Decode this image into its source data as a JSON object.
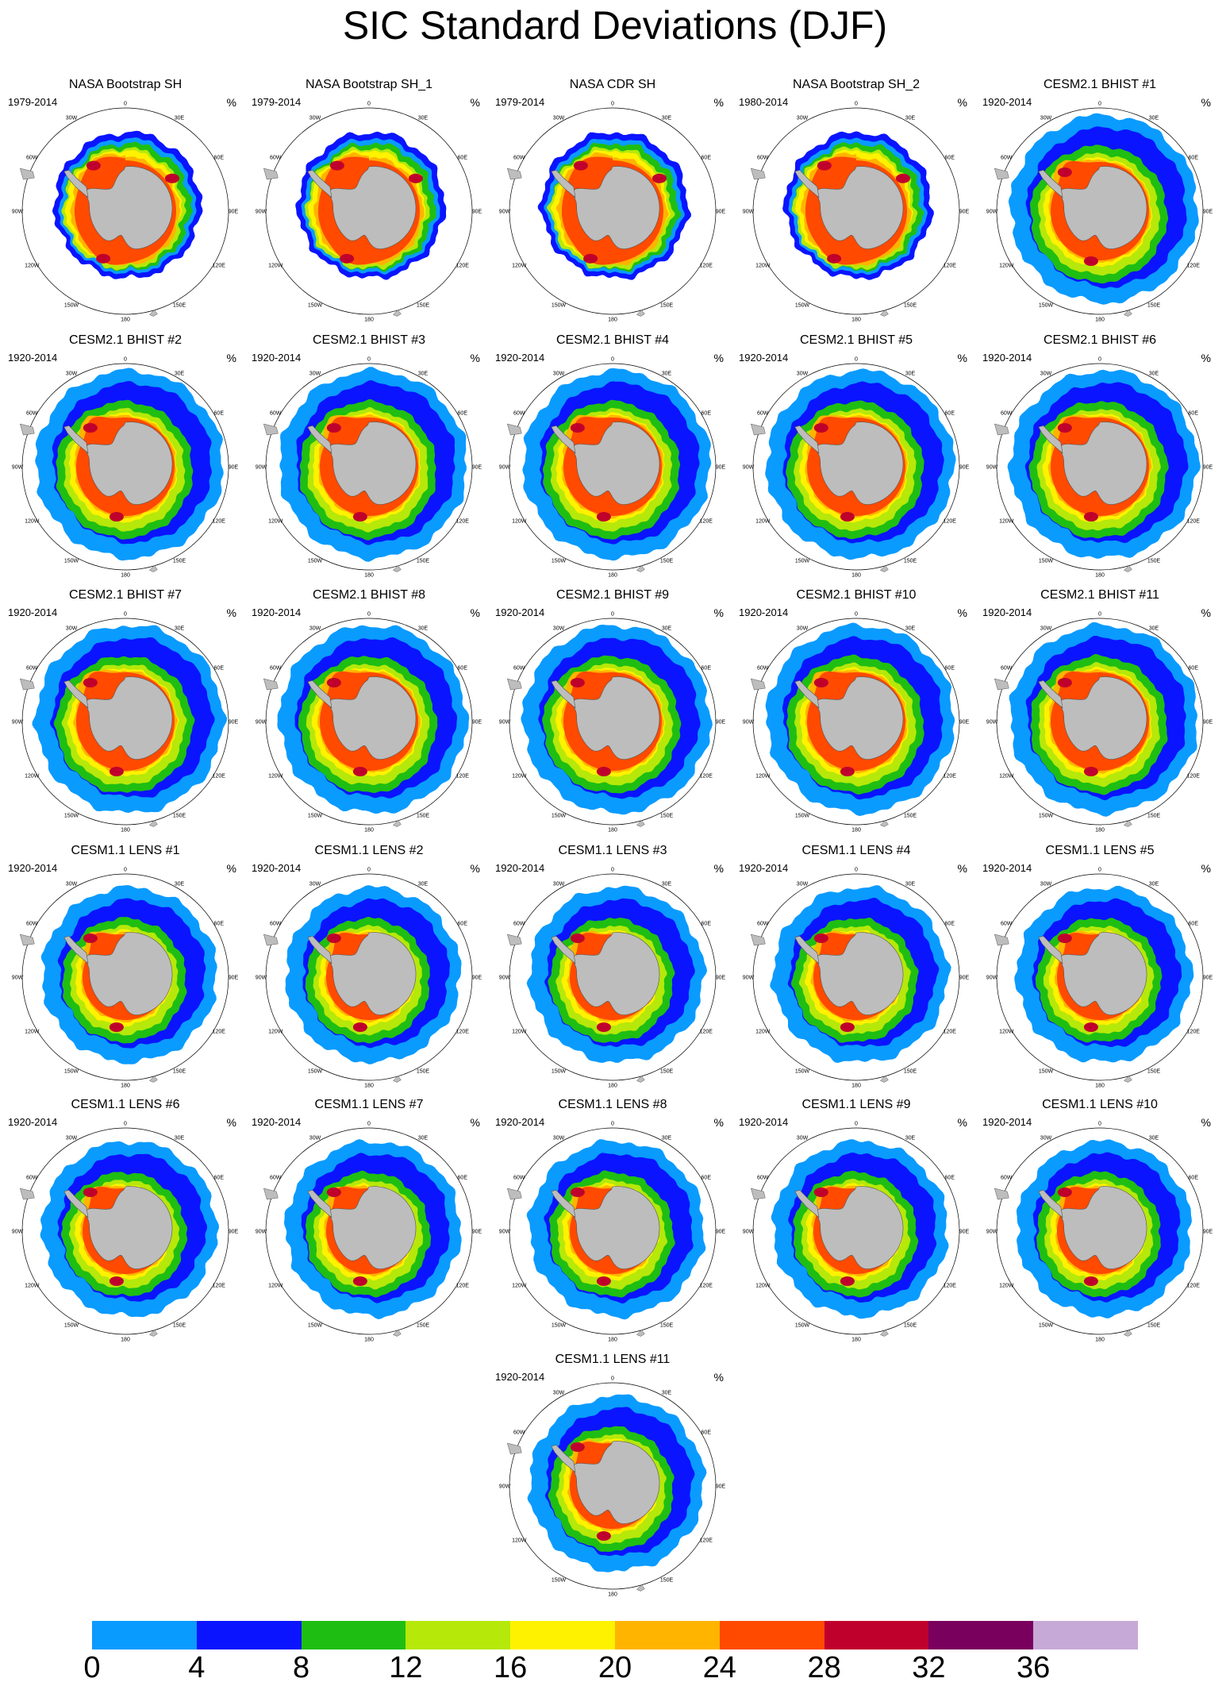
{
  "title": "SIC Standard Deviations (DJF)",
  "unit": "%",
  "panels": [
    {
      "title": "NASA Bootstrap SH",
      "period": "1979-2014",
      "kind": "obs"
    },
    {
      "title": "NASA Bootstrap SH_1",
      "period": "1979-2014",
      "kind": "obs"
    },
    {
      "title": "NASA CDR SH",
      "period": "1979-2014",
      "kind": "obs"
    },
    {
      "title": "NASA Bootstrap SH_2",
      "period": "1980-2014",
      "kind": "obs"
    },
    {
      "title": "CESM2.1 BHIST #1",
      "period": "1920-2014",
      "kind": "cesm2"
    },
    {
      "title": "CESM2.1 BHIST #2",
      "period": "1920-2014",
      "kind": "cesm2"
    },
    {
      "title": "CESM2.1 BHIST #3",
      "period": "1920-2014",
      "kind": "cesm2"
    },
    {
      "title": "CESM2.1 BHIST #4",
      "period": "1920-2014",
      "kind": "cesm2"
    },
    {
      "title": "CESM2.1 BHIST #5",
      "period": "1920-2014",
      "kind": "cesm2"
    },
    {
      "title": "CESM2.1 BHIST #6",
      "period": "1920-2014",
      "kind": "cesm2"
    },
    {
      "title": "CESM2.1 BHIST #7",
      "period": "1920-2014",
      "kind": "cesm2"
    },
    {
      "title": "CESM2.1 BHIST #8",
      "period": "1920-2014",
      "kind": "cesm2"
    },
    {
      "title": "CESM2.1 BHIST #9",
      "period": "1920-2014",
      "kind": "cesm2"
    },
    {
      "title": "CESM2.1 BHIST #10",
      "period": "1920-2014",
      "kind": "cesm2"
    },
    {
      "title": "CESM2.1 BHIST #11",
      "period": "1920-2014",
      "kind": "cesm2"
    },
    {
      "title": "CESM1.1 LENS #1",
      "period": "1920-2014",
      "kind": "cesm1"
    },
    {
      "title": "CESM1.1 LENS #2",
      "period": "1920-2014",
      "kind": "cesm1"
    },
    {
      "title": "CESM1.1 LENS #3",
      "period": "1920-2014",
      "kind": "cesm1"
    },
    {
      "title": "CESM1.1 LENS #4",
      "period": "1920-2014",
      "kind": "cesm1"
    },
    {
      "title": "CESM1.1 LENS #5",
      "period": "1920-2014",
      "kind": "cesm1"
    },
    {
      "title": "CESM1.1 LENS #6",
      "period": "1920-2014",
      "kind": "cesm1"
    },
    {
      "title": "CESM1.1 LENS #7",
      "period": "1920-2014",
      "kind": "cesm1"
    },
    {
      "title": "CESM1.1 LENS #8",
      "period": "1920-2014",
      "kind": "cesm1"
    },
    {
      "title": "CESM1.1 LENS #9",
      "period": "1920-2014",
      "kind": "cesm1"
    },
    {
      "title": "CESM1.1 LENS #10",
      "period": "1920-2014",
      "kind": "cesm1"
    },
    {
      "title": "CESM1.1 LENS #11",
      "period": "1920-2014",
      "kind": "cesm1"
    }
  ],
  "longitude_labels": [
    "0",
    "30E",
    "60E",
    "90E",
    "120E",
    "150E",
    "180",
    "150W",
    "120W",
    "90W",
    "60W",
    "30W"
  ],
  "colorbar": {
    "colors": [
      "#0a9bff",
      "#0a14ff",
      "#1fbe12",
      "#b6e80a",
      "#fff200",
      "#ffb400",
      "#ff4a00",
      "#c0002c",
      "#7a005e",
      "#c7a9d7"
    ],
    "labels": [
      "0",
      "4",
      "8",
      "12",
      "16",
      "20",
      "24",
      "28",
      "32",
      "36"
    ]
  },
  "map_colors": {
    "land": "#bdbdbd",
    "coast": "#555555",
    "ocean": "#ffffff",
    "circle": "#000000"
  }
}
